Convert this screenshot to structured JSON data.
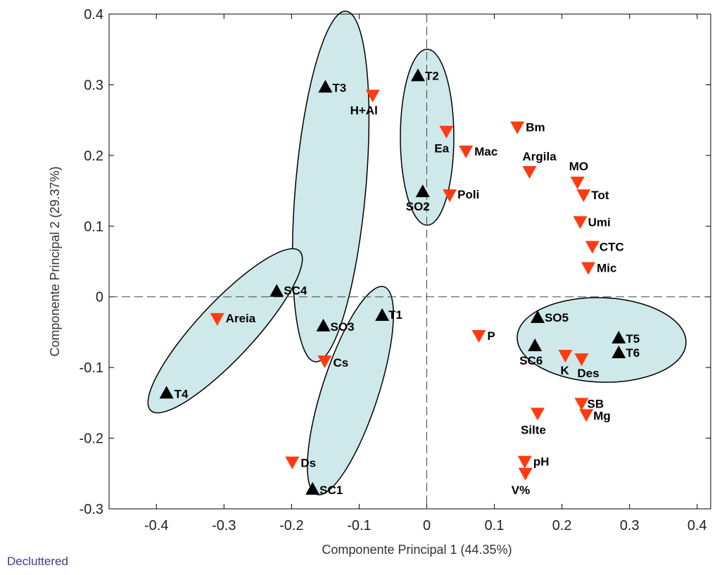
{
  "chart_data": {
    "type": "scatter",
    "xlabel": "Componente Principal 1 (44.35%)",
    "ylabel": "Componente Principal 2 (29.37%)",
    "xlim": [
      -0.47,
      0.42
    ],
    "ylim": [
      -0.3,
      0.4
    ],
    "xticks": [
      -0.4,
      -0.3,
      -0.2,
      -0.1,
      0,
      0.1,
      0.2,
      0.3,
      0.4
    ],
    "xtick_labels": [
      "-0.4",
      "-0.3",
      "-0.2",
      "-0.1",
      "0",
      "0.1",
      "0.2",
      "0.3",
      "0.4"
    ],
    "yticks": [
      -0.3,
      -0.2,
      -0.1,
      0,
      0.1,
      0.2,
      0.3,
      0.4
    ],
    "ytick_labels": [
      "-0.3",
      "-0.2",
      "-0.1",
      "0",
      "0.1",
      "0.2",
      "0.3",
      "0.4"
    ],
    "grid": false,
    "reference_lines": {
      "x": 0,
      "y": 0,
      "style": "dashed"
    },
    "colors": {
      "treatments": "#000000",
      "variables": "#ff3b10",
      "ellipse_fill": "#cfe8ea",
      "ellipse_stroke": "#000000"
    },
    "treatments": {
      "marker": "triangle-up",
      "points": [
        {
          "label": "T2",
          "x": -0.013,
          "y": 0.313
        },
        {
          "label": "T3",
          "x": -0.15,
          "y": 0.297
        },
        {
          "label": "SO2",
          "x": -0.006,
          "y": 0.149
        },
        {
          "label": "SC4",
          "x": -0.222,
          "y": 0.008
        },
        {
          "label": "T1",
          "x": -0.066,
          "y": -0.026
        },
        {
          "label": "SO3",
          "x": -0.153,
          "y": -0.041
        },
        {
          "label": "T4",
          "x": -0.385,
          "y": -0.136
        },
        {
          "label": "SC1",
          "x": -0.169,
          "y": -0.272
        },
        {
          "label": "SO5",
          "x": 0.164,
          "y": -0.029
        },
        {
          "label": "SC6",
          "x": 0.16,
          "y": -0.069
        },
        {
          "label": "T5",
          "x": 0.284,
          "y": -0.058
        },
        {
          "label": "T6",
          "x": 0.284,
          "y": -0.079
        }
      ]
    },
    "variables": {
      "marker": "triangle-down",
      "points": [
        {
          "label": "H+Al",
          "x": -0.08,
          "y": 0.285
        },
        {
          "label": "Ea",
          "x": 0.029,
          "y": 0.234
        },
        {
          "label": "Mac",
          "x": 0.058,
          "y": 0.206
        },
        {
          "label": "Bm",
          "x": 0.134,
          "y": 0.24
        },
        {
          "label": "Argila",
          "x": 0.152,
          "y": 0.177
        },
        {
          "label": "MO",
          "x": 0.223,
          "y": 0.162
        },
        {
          "label": "Tot",
          "x": 0.232,
          "y": 0.144
        },
        {
          "label": "Poli",
          "x": 0.034,
          "y": 0.144
        },
        {
          "label": "Umi",
          "x": 0.227,
          "y": 0.106
        },
        {
          "label": "CTC",
          "x": 0.245,
          "y": 0.071
        },
        {
          "label": "Mic",
          "x": 0.239,
          "y": 0.041
        },
        {
          "label": "Areia",
          "x": -0.31,
          "y": -0.031
        },
        {
          "label": "P",
          "x": 0.077,
          "y": -0.055
        },
        {
          "label": "K",
          "x": 0.205,
          "y": -0.083
        },
        {
          "label": "Des",
          "x": 0.229,
          "y": -0.088
        },
        {
          "label": "Cs",
          "x": -0.151,
          "y": -0.091
        },
        {
          "label": "SB",
          "x": 0.229,
          "y": -0.151
        },
        {
          "label": "Mg",
          "x": 0.236,
          "y": -0.167
        },
        {
          "label": "Silte",
          "x": 0.164,
          "y": -0.165
        },
        {
          "label": "Ds",
          "x": -0.199,
          "y": -0.234
        },
        {
          "label": "pH",
          "x": 0.145,
          "y": -0.233
        },
        {
          "label": "V%",
          "x": 0.146,
          "y": -0.25
        }
      ]
    }
  },
  "footer": {
    "label": "Decluttered"
  }
}
